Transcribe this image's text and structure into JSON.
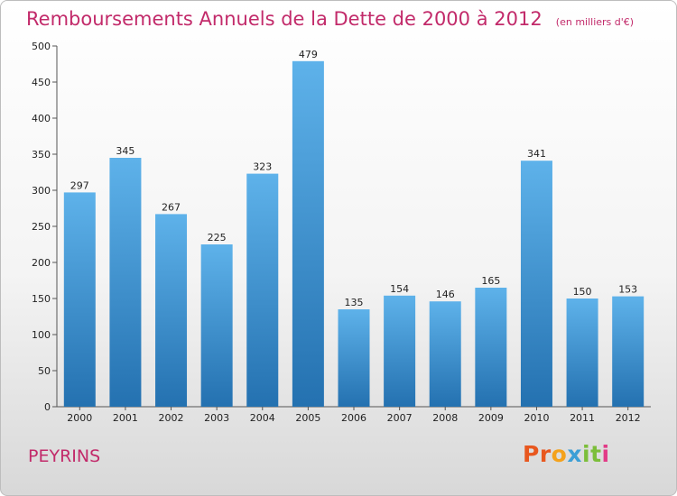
{
  "header": {
    "title": "Remboursements Annuels de la Dette de 2000 à 2012",
    "subtitle": "(en milliers d'€)"
  },
  "footer": {
    "commune": "PEYRINS",
    "logo_letters": [
      "P",
      "r",
      "o",
      "x",
      "i",
      "t",
      "i"
    ],
    "logo_colors": [
      "#e8571e",
      "#e8571e",
      "#f4a21c",
      "#3c9fd6",
      "#7cbe3a",
      "#7cbe3a",
      "#e23b87"
    ]
  },
  "colors": {
    "bar_top": "#5eb2ea",
    "bar_bottom": "#2471b0",
    "title": "#c22a6a"
  },
  "chart_data": {
    "type": "bar",
    "title": "Remboursements Annuels de la Dette de 2000 à 2012",
    "subtitle": "(en milliers d'€)",
    "categories": [
      "2000",
      "2001",
      "2002",
      "2003",
      "2004",
      "2005",
      "2006",
      "2007",
      "2008",
      "2009",
      "2010",
      "2011",
      "2012"
    ],
    "values": [
      297,
      345,
      267,
      225,
      323,
      479,
      135,
      154,
      146,
      165,
      341,
      150,
      153
    ],
    "ylim": [
      0,
      500
    ],
    "yticks": [
      "0",
      "50",
      "100",
      "150",
      "200",
      "250",
      "300",
      "350",
      "400",
      "450",
      "500"
    ],
    "grid": false
  }
}
